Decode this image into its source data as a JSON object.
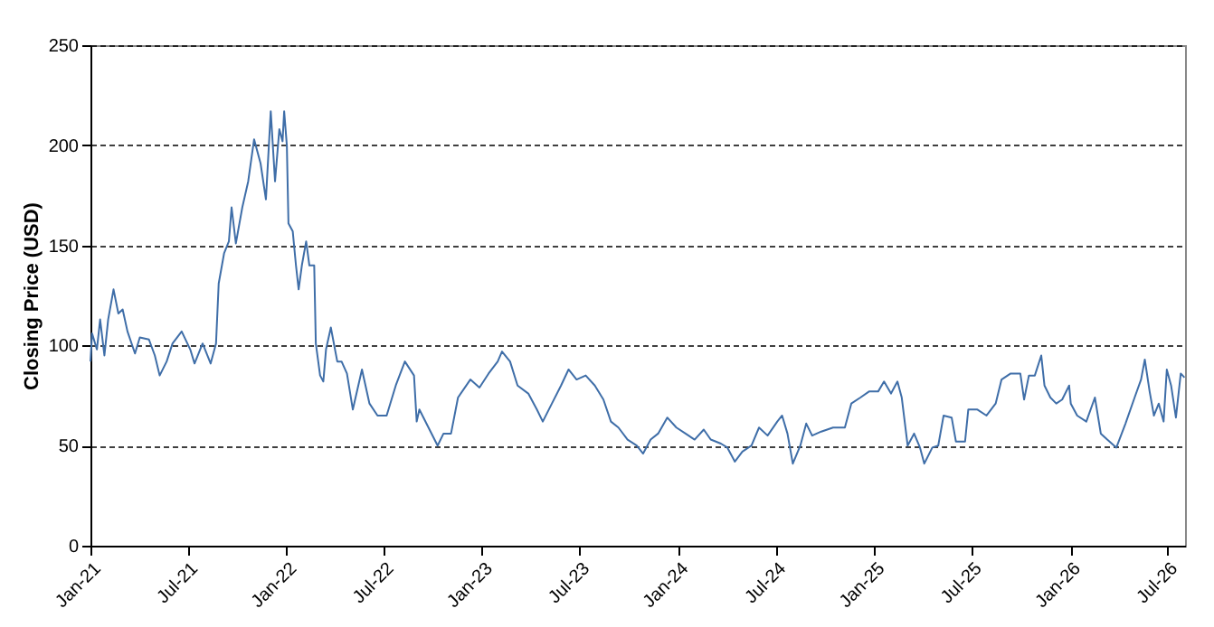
{
  "chart_data": {
    "type": "line",
    "ylabel": "Closing Price (USD)",
    "x": [
      "2021-01-01",
      "2021-01-04",
      "2021-01-13",
      "2021-01-19",
      "2021-01-27",
      "2021-02-03",
      "2021-02-13",
      "2021-02-22",
      "2021-03-02",
      "2021-03-11",
      "2021-03-25",
      "2021-04-03",
      "2021-04-20",
      "2021-05-01",
      "2021-05-10",
      "2021-05-23",
      "2021-06-03",
      "2021-06-20",
      "2021-07-06",
      "2021-07-14",
      "2021-07-29",
      "2021-08-13",
      "2021-08-23",
      "2021-08-28",
      "2021-09-07",
      "2021-09-16",
      "2021-09-21",
      "2021-09-29",
      "2021-10-11",
      "2021-10-22",
      "2021-11-02",
      "2021-11-14",
      "2021-11-24",
      "2021-12-03",
      "2021-12-11",
      "2021-12-19",
      "2021-12-25",
      "2021-12-28",
      "2022-01-02",
      "2022-01-05",
      "2022-01-13",
      "2022-01-19",
      "2022-01-24",
      "2022-01-30",
      "2022-02-07",
      "2022-02-13",
      "2022-02-22",
      "2022-02-25",
      "2022-03-05",
      "2022-03-11",
      "2022-03-16",
      "2022-03-25",
      "2022-04-06",
      "2022-04-14",
      "2022-04-24",
      "2022-05-05",
      "2022-05-22",
      "2022-06-05",
      "2022-06-20",
      "2022-07-07",
      "2022-07-24",
      "2022-08-10",
      "2022-08-27",
      "2022-09-01",
      "2022-09-06",
      "2022-09-23",
      "2022-10-10",
      "2022-10-21",
      "2022-11-04",
      "2022-11-17",
      "2022-12-10",
      "2022-12-27",
      "2023-01-13",
      "2023-01-30",
      "2023-02-07",
      "2023-02-22",
      "2023-03-08",
      "2023-03-28",
      "2023-04-13",
      "2023-04-24",
      "2023-05-11",
      "2023-05-28",
      "2023-06-11",
      "2023-06-26",
      "2023-07-13",
      "2023-07-30",
      "2023-08-15",
      "2023-08-29",
      "2023-09-12",
      "2023-09-29",
      "2023-10-16",
      "2023-10-28",
      "2023-11-11",
      "2023-11-25",
      "2023-12-12",
      "2023-12-29",
      "2024-01-15",
      "2024-02-01",
      "2024-02-18",
      "2024-03-02",
      "2024-03-21",
      "2024-04-02",
      "2024-04-16",
      "2024-04-30",
      "2024-05-17",
      "2024-05-31",
      "2024-06-16",
      "2024-07-04",
      "2024-07-13",
      "2024-07-23",
      "2024-08-02",
      "2024-08-16",
      "2024-08-27",
      "2024-09-07",
      "2024-09-24",
      "2024-10-16",
      "2024-11-07",
      "2024-11-19",
      "2024-12-06",
      "2024-12-22",
      "2025-01-08",
      "2025-01-19",
      "2025-02-01",
      "2025-02-13",
      "2025-02-21",
      "2025-03-04",
      "2025-03-16",
      "2025-03-27",
      "2025-04-04",
      "2025-04-19",
      "2025-04-30",
      "2025-05-10",
      "2025-05-25",
      "2025-06-02",
      "2025-06-19",
      "2025-06-25",
      "2025-07-12",
      "2025-07-29",
      "2025-08-15",
      "2025-08-26",
      "2025-09-12",
      "2025-09-30",
      "2025-10-07",
      "2025-10-16",
      "2025-10-27",
      "2025-11-08",
      "2025-11-14",
      "2025-11-25",
      "2025-12-06",
      "2025-12-17",
      "2025-12-30",
      "2026-01-02",
      "2026-01-14",
      "2026-01-31",
      "2026-02-16",
      "2026-02-27",
      "2026-03-11",
      "2026-03-28",
      "2026-04-14",
      "2026-05-01",
      "2026-05-13",
      "2026-05-20",
      "2026-05-29",
      "2026-06-06",
      "2026-06-15",
      "2026-06-24",
      "2026-06-30",
      "2026-07-08",
      "2026-07-17",
      "2026-07-26",
      "2026-08-02"
    ],
    "series": [
      {
        "color": "#3f6ea8",
        "values": [
          92,
          106,
          98,
          113,
          95,
          113,
          128,
          116,
          118,
          107,
          96,
          104,
          103,
          95,
          85,
          92,
          101,
          107,
          98,
          91,
          101,
          91,
          101,
          131,
          146,
          152,
          169,
          151,
          169,
          182,
          203,
          191,
          173,
          217,
          182,
          208,
          202,
          217,
          200,
          161,
          157,
          140,
          128,
          140,
          152,
          140,
          140,
          101,
          85,
          82,
          98,
          109,
          92,
          92,
          86,
          68,
          88,
          71,
          65,
          65,
          80,
          92,
          85,
          62,
          68,
          59,
          50,
          56,
          56,
          74,
          83,
          79,
          86,
          92,
          97,
          92,
          80,
          76,
          68,
          62,
          71,
          80,
          88,
          83,
          85,
          80,
          73,
          62,
          59,
          53,
          50,
          46,
          53,
          56,
          64,
          59,
          56,
          53,
          58,
          53,
          51,
          49,
          42,
          47,
          50,
          59,
          55,
          62,
          65,
          56,
          41,
          50,
          61,
          55,
          57,
          59,
          59,
          71,
          74,
          77,
          77,
          82,
          76,
          82,
          74,
          50,
          56,
          49,
          41,
          49,
          50,
          65,
          64,
          52,
          52,
          68,
          68,
          65,
          71,
          83,
          86,
          86,
          73,
          85,
          85,
          95,
          80,
          74,
          71,
          73,
          80,
          71,
          65,
          62,
          74,
          56,
          53,
          49,
          61,
          74,
          83,
          93,
          77,
          65,
          71,
          62,
          88,
          80,
          64,
          86,
          84
        ]
      }
    ],
    "xlim": [
      "2021-01-01",
      "2026-08-03"
    ],
    "xticks": [
      {
        "value": "2021-01-01",
        "label": "Jan-21"
      },
      {
        "value": "2021-07-01",
        "label": "Jul-21"
      },
      {
        "value": "2022-01-01",
        "label": "Jan-22"
      },
      {
        "value": "2022-07-01",
        "label": "Jul-22"
      },
      {
        "value": "2023-01-01",
        "label": "Jan-23"
      },
      {
        "value": "2023-07-01",
        "label": "Jul-23"
      },
      {
        "value": "2024-01-01",
        "label": "Jan-24"
      },
      {
        "value": "2024-07-01",
        "label": "Jul-24"
      },
      {
        "value": "2025-01-01",
        "label": "Jan-25"
      },
      {
        "value": "2025-07-01",
        "label": "Jul-25"
      },
      {
        "value": "2026-01-01",
        "label": "Jan-26"
      },
      {
        "value": "2026-07-01",
        "label": "Jul-26"
      }
    ],
    "ylim": [
      0,
      250
    ],
    "yticks": [
      0,
      50,
      100,
      150,
      200,
      250
    ],
    "grid": "y",
    "line_style": "solid"
  }
}
